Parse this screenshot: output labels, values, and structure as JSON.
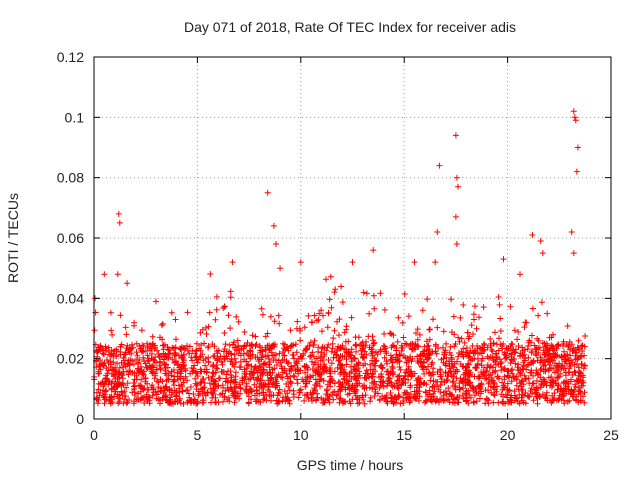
{
  "chart_data": {
    "type": "scatter",
    "title": "Day 071 of 2018, Rate Of TEC Index for receiver adis",
    "xlabel": "GPS time / hours",
    "ylabel": "ROTI / TECUs",
    "xlim": [
      0,
      25
    ],
    "ylim": [
      0,
      0.12
    ],
    "x_ticks": [
      0,
      5,
      10,
      15,
      20,
      25
    ],
    "x_tick_labels": [
      "0",
      "5",
      "10",
      "15",
      "20",
      "25"
    ],
    "y_ticks": [
      0,
      0.02,
      0.04,
      0.06,
      0.08,
      0.1,
      0.12
    ],
    "y_tick_labels": [
      "0",
      "0.02",
      "0.04",
      "0.06",
      "0.08",
      "0.1",
      "0.12"
    ],
    "grid": true,
    "marker": "+",
    "color": "#ff0000",
    "series": [
      {
        "name": "ROTI",
        "x_range": [
          0,
          23.75
        ],
        "baseline_band": [
          0.005,
          0.025
        ],
        "notable_points": [
          {
            "x": 0.05,
            "y": 0.04
          },
          {
            "x": 0.5,
            "y": 0.048
          },
          {
            "x": 1.2,
            "y": 0.068
          },
          {
            "x": 1.25,
            "y": 0.065
          },
          {
            "x": 1.15,
            "y": 0.048
          },
          {
            "x": 1.6,
            "y": 0.045
          },
          {
            "x": 3.0,
            "y": 0.039
          },
          {
            "x": 6.7,
            "y": 0.052
          },
          {
            "x": 8.4,
            "y": 0.075
          },
          {
            "x": 8.7,
            "y": 0.064
          },
          {
            "x": 8.8,
            "y": 0.058
          },
          {
            "x": 9.0,
            "y": 0.05
          },
          {
            "x": 10.0,
            "y": 0.052
          },
          {
            "x": 12.5,
            "y": 0.052
          },
          {
            "x": 13.5,
            "y": 0.056
          },
          {
            "x": 15.5,
            "y": 0.052
          },
          {
            "x": 16.5,
            "y": 0.052
          },
          {
            "x": 16.7,
            "y": 0.084
          },
          {
            "x": 16.6,
            "y": 0.062
          },
          {
            "x": 17.5,
            "y": 0.094
          },
          {
            "x": 17.55,
            "y": 0.08
          },
          {
            "x": 17.6,
            "y": 0.077
          },
          {
            "x": 17.5,
            "y": 0.067
          },
          {
            "x": 17.55,
            "y": 0.058
          },
          {
            "x": 19.8,
            "y": 0.053
          },
          {
            "x": 20.6,
            "y": 0.048
          },
          {
            "x": 21.2,
            "y": 0.061
          },
          {
            "x": 21.6,
            "y": 0.059
          },
          {
            "x": 21.7,
            "y": 0.055
          },
          {
            "x": 23.2,
            "y": 0.102
          },
          {
            "x": 23.25,
            "y": 0.1
          },
          {
            "x": 23.3,
            "y": 0.099
          },
          {
            "x": 23.4,
            "y": 0.09
          },
          {
            "x": 23.35,
            "y": 0.082
          },
          {
            "x": 23.1,
            "y": 0.062
          },
          {
            "x": 23.2,
            "y": 0.055
          }
        ]
      }
    ]
  }
}
